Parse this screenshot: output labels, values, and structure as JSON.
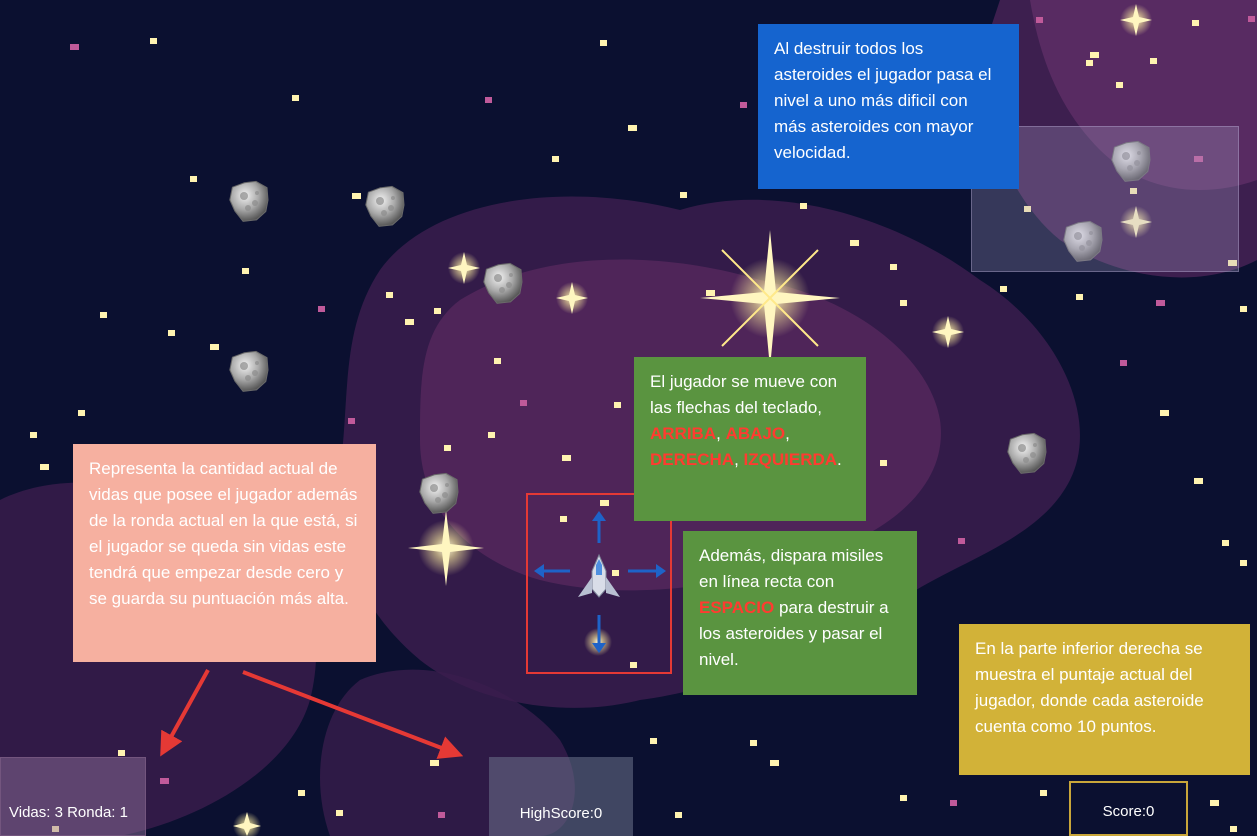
{
  "game": {
    "colors": {
      "space": "#0b1030",
      "nebula": "#4a1f55",
      "star": "#fff3b0",
      "annotation_arrow": "#e53935",
      "direction_arrow": "#1e63c8"
    },
    "icons": [
      "spaceship-icon",
      "asteroid-icon",
      "star-icon",
      "arrow-up-icon",
      "arrow-down-icon",
      "arrow-left-icon",
      "arrow-right-icon"
    ]
  },
  "hud": {
    "lives_round": "Vidas: 3 Ronda: 1",
    "highscore": "HighScore:0",
    "score": "Score:0"
  },
  "notes": {
    "waves": "Al destruir todos los asteroides el jugador pasa el nivel a uno más dificil con más asteroides con mayor velocidad.",
    "lives": "Representa la cantidad actual de vidas que posee el jugador además de la ronda actual en la que está, si el jugador se queda sin vidas este tendrá que empezar desde cero y se guarda su puntuación más alta.",
    "move": {
      "intro": "El jugador se mueve con las flechas del teclado,",
      "up": "ARRIBA",
      "down": "ABAJO",
      "right": "DERECHA",
      "left": "IZQUIERDA",
      "sep1": ",",
      "sep2": ",",
      "sep3": ",",
      "end": "."
    },
    "fire": {
      "intro": "Además, dispara misiles en línea recta con",
      "key": "ESPACIO",
      "rest": "para destruir a los asteroides y pasar el nivel."
    },
    "score": "En la parte inferior derecha se muestra el puntaje actual del jugador, donde cada asteroide cuenta como 10 puntos."
  }
}
